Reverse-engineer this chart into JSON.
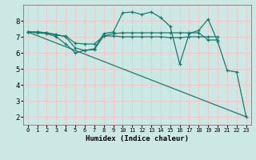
{
  "xlabel": "Humidex (Indice chaleur)",
  "ylabel": "",
  "bg_color": "#cce8e4",
  "grid_color": "#f0c8c8",
  "line_color": "#1a7a6e",
  "xlim": [
    -0.5,
    23.5
  ],
  "ylim": [
    1.5,
    9.0
  ],
  "xticks": [
    0,
    1,
    2,
    3,
    4,
    5,
    6,
    7,
    8,
    9,
    10,
    11,
    12,
    13,
    14,
    15,
    16,
    17,
    18,
    19,
    20,
    21,
    22,
    23
  ],
  "yticks": [
    2,
    3,
    4,
    5,
    6,
    7,
    8
  ],
  "series": [
    {
      "x": [
        0,
        1,
        2,
        3,
        4,
        5,
        6,
        7,
        8,
        9,
        10,
        11,
        12,
        13,
        14,
        15,
        16,
        17,
        18,
        19,
        20
      ],
      "y": [
        7.3,
        7.3,
        7.25,
        7.1,
        7.05,
        6.6,
        6.55,
        6.55,
        7.05,
        7.05,
        7.0,
        7.0,
        7.0,
        7.0,
        7.0,
        6.95,
        6.95,
        7.0,
        7.0,
        7.0,
        7.0
      ]
    },
    {
      "x": [
        0,
        1,
        2,
        3,
        4,
        5,
        6,
        7,
        8,
        9,
        10,
        11,
        12,
        13,
        14,
        15,
        16,
        17,
        18,
        19,
        20,
        21,
        22,
        23
      ],
      "y": [
        7.3,
        7.25,
        7.2,
        7.0,
        6.55,
        6.0,
        6.15,
        6.25,
        7.2,
        7.3,
        8.5,
        8.55,
        8.4,
        8.55,
        8.2,
        7.65,
        5.3,
        7.2,
        7.4,
        8.1,
        6.7,
        4.9,
        4.8,
        2.0
      ]
    },
    {
      "x": [
        0,
        1,
        2,
        3,
        4,
        5,
        6,
        7,
        8,
        9,
        10,
        11,
        12,
        13,
        14,
        15,
        16,
        17,
        18,
        19,
        20
      ],
      "y": [
        7.3,
        7.3,
        7.25,
        7.15,
        7.0,
        6.3,
        6.15,
        6.2,
        7.05,
        7.2,
        7.25,
        7.25,
        7.25,
        7.25,
        7.25,
        7.25,
        7.25,
        7.25,
        7.25,
        6.8,
        6.8
      ]
    },
    {
      "x": [
        0,
        23
      ],
      "y": [
        7.3,
        2.0
      ]
    }
  ]
}
